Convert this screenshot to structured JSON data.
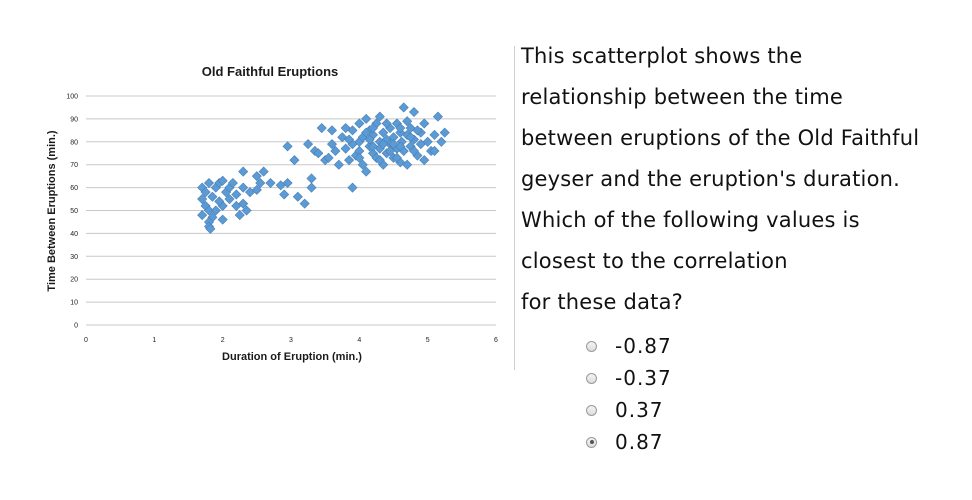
{
  "chart_data": {
    "type": "scatter",
    "title": "Old Faithful Eruptions",
    "xlabel": "Duration of Eruption (min.)",
    "ylabel": "Time Between Eruptions (min.)",
    "xlim": [
      0,
      6
    ],
    "ylim": [
      0,
      100
    ],
    "x_ticks": [
      "0",
      "1",
      "2",
      "3",
      "4",
      "5",
      "6"
    ],
    "y_ticks": [
      "0",
      "10",
      "20",
      "30",
      "40",
      "50",
      "60",
      "70",
      "80",
      "90",
      "100"
    ],
    "grid": "horizontal",
    "marker": "diamond",
    "colors": {
      "marker": "#5b9bd5",
      "marker_edge": "#4a7fb5",
      "grid": "#c8c8c8"
    },
    "points": [
      [
        1.7,
        60
      ],
      [
        1.75,
        58
      ],
      [
        1.8,
        62
      ],
      [
        1.7,
        55
      ],
      [
        1.75,
        52
      ],
      [
        1.8,
        50
      ],
      [
        1.7,
        48
      ],
      [
        1.85,
        56
      ],
      [
        1.9,
        60
      ],
      [
        1.95,
        62
      ],
      [
        2.0,
        63
      ],
      [
        2.05,
        58
      ],
      [
        2.1,
        55
      ],
      [
        2.0,
        52
      ],
      [
        1.9,
        50
      ],
      [
        1.85,
        47
      ],
      [
        1.8,
        45
      ],
      [
        1.8,
        43
      ],
      [
        1.82,
        42
      ],
      [
        1.95,
        54
      ],
      [
        2.1,
        60
      ],
      [
        2.15,
        62
      ],
      [
        2.2,
        57
      ],
      [
        2.2,
        52
      ],
      [
        2.25,
        48
      ],
      [
        2.0,
        46
      ],
      [
        2.3,
        53
      ],
      [
        2.35,
        50
      ],
      [
        2.3,
        60
      ],
      [
        2.4,
        58
      ],
      [
        2.3,
        67
      ],
      [
        2.5,
        65
      ],
      [
        2.55,
        62
      ],
      [
        2.6,
        67
      ],
      [
        2.7,
        62
      ],
      [
        2.5,
        59
      ],
      [
        2.85,
        61
      ],
      [
        2.9,
        57
      ],
      [
        2.95,
        62
      ],
      [
        2.95,
        78
      ],
      [
        3.05,
        72
      ],
      [
        3.1,
        56
      ],
      [
        3.2,
        53
      ],
      [
        3.25,
        79
      ],
      [
        3.3,
        64
      ],
      [
        3.3,
        60
      ],
      [
        3.35,
        76
      ],
      [
        3.4,
        75
      ],
      [
        3.45,
        86
      ],
      [
        3.5,
        72
      ],
      [
        3.55,
        73
      ],
      [
        3.6,
        79
      ],
      [
        3.65,
        76
      ],
      [
        3.6,
        85
      ],
      [
        3.7,
        70
      ],
      [
        3.75,
        82
      ],
      [
        3.8,
        86
      ],
      [
        3.8,
        77
      ],
      [
        3.85,
        72
      ],
      [
        3.9,
        85
      ],
      [
        3.9,
        60
      ],
      [
        3.95,
        74
      ],
      [
        4.0,
        80
      ],
      [
        4.0,
        76
      ],
      [
        4.05,
        82
      ],
      [
        4.05,
        70
      ],
      [
        4.1,
        90
      ],
      [
        4.1,
        67
      ],
      [
        4.15,
        78
      ],
      [
        4.15,
        85
      ],
      [
        4.2,
        75
      ],
      [
        4.2,
        83
      ],
      [
        4.25,
        73
      ],
      [
        4.25,
        88
      ],
      [
        4.3,
        80
      ],
      [
        4.3,
        77
      ],
      [
        4.35,
        84
      ],
      [
        4.35,
        70
      ],
      [
        4.4,
        81
      ],
      [
        4.4,
        75
      ],
      [
        4.45,
        86
      ],
      [
        4.45,
        79
      ],
      [
        4.5,
        73
      ],
      [
        4.5,
        82
      ],
      [
        4.55,
        77
      ],
      [
        4.55,
        88
      ],
      [
        4.6,
        84
      ],
      [
        4.6,
        71
      ],
      [
        4.62,
        80
      ],
      [
        4.65,
        76
      ],
      [
        4.65,
        95
      ],
      [
        4.7,
        83
      ],
      [
        4.7,
        70
      ],
      [
        4.75,
        86
      ],
      [
        4.75,
        78
      ],
      [
        4.8,
        93
      ],
      [
        4.8,
        81
      ],
      [
        4.85,
        74
      ],
      [
        4.9,
        84
      ],
      [
        4.9,
        79
      ],
      [
        4.95,
        88
      ],
      [
        4.95,
        72
      ],
      [
        5.0,
        80
      ],
      [
        5.05,
        76
      ],
      [
        5.1,
        83
      ],
      [
        5.1,
        76
      ],
      [
        5.15,
        91
      ],
      [
        5.2,
        80
      ],
      [
        5.25,
        84
      ],
      [
        4.0,
        88
      ],
      [
        4.1,
        84
      ],
      [
        4.2,
        78
      ],
      [
        4.3,
        91
      ],
      [
        4.4,
        88
      ],
      [
        4.5,
        79
      ],
      [
        4.6,
        86
      ],
      [
        4.7,
        89
      ],
      [
        4.8,
        76
      ],
      [
        4.3,
        72
      ],
      [
        4.2,
        86
      ],
      [
        3.9,
        79
      ],
      [
        4.0,
        73
      ],
      [
        4.35,
        79
      ],
      [
        4.55,
        73
      ],
      [
        4.75,
        82
      ],
      [
        4.85,
        85
      ],
      [
        4.45,
        76
      ],
      [
        4.15,
        81
      ],
      [
        3.85,
        81
      ],
      [
        4.6,
        78
      ]
    ]
  },
  "question": {
    "lines": [
      "This scatterplot shows the",
      "relationship between the time",
      "between eruptions of the Old Faithful",
      "geyser and the eruption's duration.",
      "Which of the following values is",
      "closest to the correlation",
      "for these data?"
    ],
    "options": [
      {
        "label": "-0.87",
        "selected": false
      },
      {
        "label": "-0.37",
        "selected": false
      },
      {
        "label": "0.37",
        "selected": false
      },
      {
        "label": "0.87",
        "selected": true
      }
    ]
  }
}
